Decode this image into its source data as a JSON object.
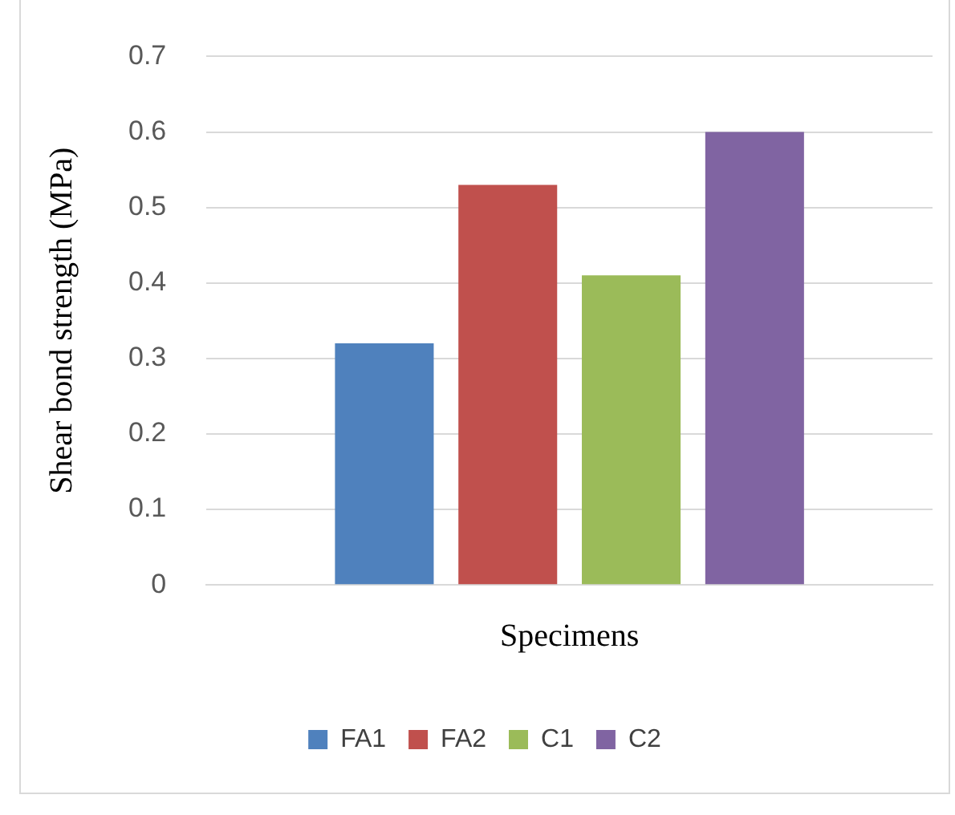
{
  "chart_data": {
    "type": "bar",
    "categories": [
      null
    ],
    "xlabel": "Specimens",
    "ylabel": "Shear bond strength (MPa)",
    "series": [
      {
        "name": "FA1",
        "color": "#4f81bd",
        "values": [
          0.32
        ]
      },
      {
        "name": "FA2",
        "color": "#c0504d",
        "values": [
          0.53
        ]
      },
      {
        "name": "C1",
        "color": "#9bbb59",
        "values": [
          0.41
        ]
      },
      {
        "name": "C2",
        "color": "#8064a2",
        "values": [
          0.6
        ]
      }
    ],
    "ylim": [
      0,
      0.7
    ],
    "yticks": [
      0,
      0.1,
      0.2,
      0.3,
      0.4,
      0.5,
      0.6,
      0.7
    ],
    "grid": "y",
    "legend": "bottom"
  }
}
